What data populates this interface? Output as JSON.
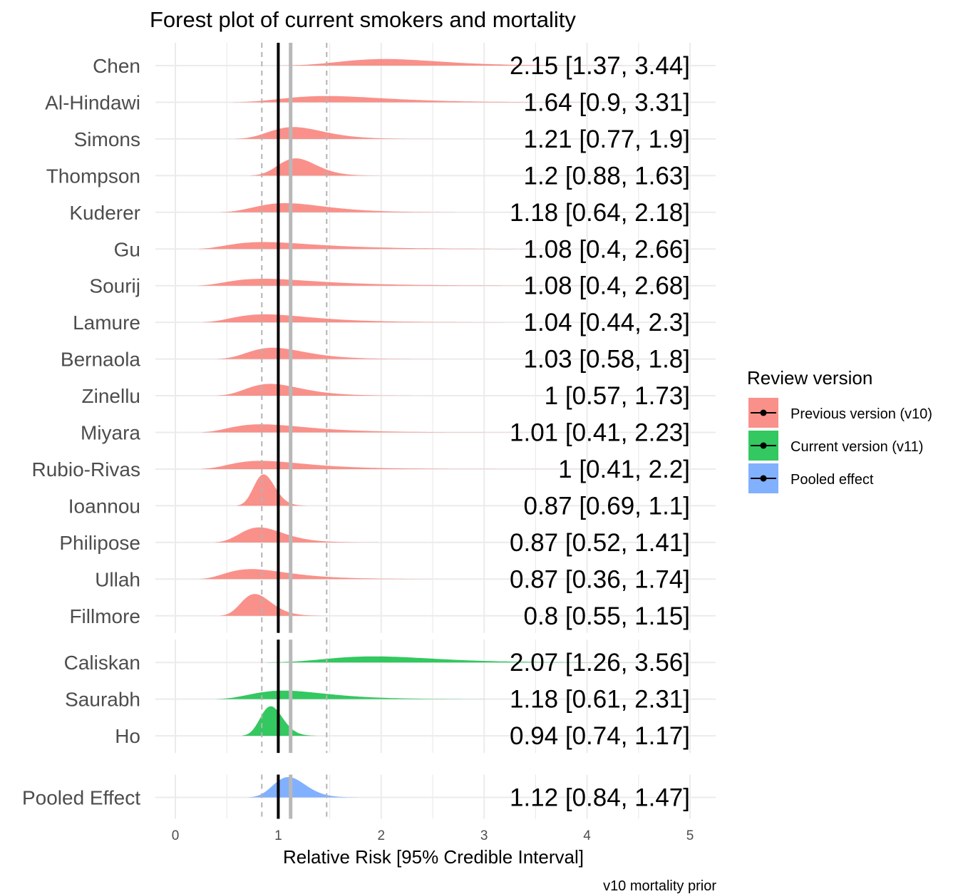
{
  "chart_data": {
    "type": "ridgeline-forest",
    "title": "Forest plot of current smokers and mortality",
    "xlabel": "Relative Risk [95% Credible Interval]",
    "caption": "v10 mortality prior",
    "xlim": [
      0,
      5
    ],
    "x_ticks": [
      "0",
      "1",
      "2",
      "3",
      "4",
      "5"
    ],
    "grid": true,
    "null_line": 1,
    "pooled_mean": 1.12,
    "pooled_ci": [
      0.84,
      1.47
    ],
    "legend": {
      "title": "Review version",
      "placement": "right",
      "items": [
        {
          "label": "Previous version (v10)",
          "color": "#F8766D"
        },
        {
          "label": "Current version (v11)",
          "color": "#00BA38"
        },
        {
          "label": "Pooled effect",
          "color": "#619CFF"
        }
      ]
    },
    "groups": [
      {
        "version": "Previous version (v10)",
        "color": "#F8766D",
        "studies": [
          {
            "study": "Chen",
            "mean": 2.15,
            "lower": 1.37,
            "upper": 3.44,
            "label": "2.15 [1.37, 3.44]"
          },
          {
            "study": "Al-Hindawi",
            "mean": 1.64,
            "lower": 0.9,
            "upper": 3.31,
            "label": "1.64 [0.9, 3.31]"
          },
          {
            "study": "Simons",
            "mean": 1.21,
            "lower": 0.77,
            "upper": 1.9,
            "label": "1.21 [0.77, 1.9]"
          },
          {
            "study": "Thompson",
            "mean": 1.2,
            "lower": 0.88,
            "upper": 1.63,
            "label": "1.2 [0.88, 1.63]"
          },
          {
            "study": "Kuderer",
            "mean": 1.18,
            "lower": 0.64,
            "upper": 2.18,
            "label": "1.18 [0.64, 2.18]"
          },
          {
            "study": "Gu",
            "mean": 1.08,
            "lower": 0.4,
            "upper": 2.66,
            "label": "1.08 [0.4, 2.66]"
          },
          {
            "study": "Sourij",
            "mean": 1.08,
            "lower": 0.4,
            "upper": 2.68,
            "label": "1.08 [0.4, 2.68]"
          },
          {
            "study": "Lamure",
            "mean": 1.04,
            "lower": 0.44,
            "upper": 2.3,
            "label": "1.04 [0.44, 2.3]"
          },
          {
            "study": "Bernaola",
            "mean": 1.03,
            "lower": 0.58,
            "upper": 1.8,
            "label": "1.03 [0.58, 1.8]"
          },
          {
            "study": "Zinellu",
            "mean": 1,
            "lower": 0.57,
            "upper": 1.73,
            "label": "1 [0.57, 1.73]"
          },
          {
            "study": "Miyara",
            "mean": 1.01,
            "lower": 0.41,
            "upper": 2.23,
            "label": "1.01 [0.41, 2.23]"
          },
          {
            "study": "Rubio-Rivas",
            "mean": 1,
            "lower": 0.41,
            "upper": 2.2,
            "label": "1 [0.41, 2.2]"
          },
          {
            "study": "Ioannou",
            "mean": 0.87,
            "lower": 0.69,
            "upper": 1.1,
            "label": "0.87 [0.69, 1.1]"
          },
          {
            "study": "Philipose",
            "mean": 0.87,
            "lower": 0.52,
            "upper": 1.41,
            "label": "0.87 [0.52, 1.41]"
          },
          {
            "study": "Ullah",
            "mean": 0.87,
            "lower": 0.36,
            "upper": 1.74,
            "label": "0.87 [0.36, 1.74]"
          },
          {
            "study": "Fillmore",
            "mean": 0.8,
            "lower": 0.55,
            "upper": 1.15,
            "label": "0.8 [0.55, 1.15]"
          }
        ]
      },
      {
        "version": "Current version (v11)",
        "color": "#00BA38",
        "studies": [
          {
            "study": "Caliskan",
            "mean": 2.07,
            "lower": 1.26,
            "upper": 3.56,
            "label": "2.07 [1.26, 3.56]"
          },
          {
            "study": "Saurabh",
            "mean": 1.18,
            "lower": 0.61,
            "upper": 2.31,
            "label": "1.18 [0.61, 2.31]"
          },
          {
            "study": "Ho",
            "mean": 0.94,
            "lower": 0.74,
            "upper": 1.17,
            "label": "0.94 [0.74, 1.17]"
          }
        ]
      },
      {
        "version": "Pooled effect",
        "color": "#619CFF",
        "studies": [
          {
            "study": "Pooled Effect",
            "mean": 1.12,
            "lower": 0.84,
            "upper": 1.47,
            "label": "1.12 [0.84, 1.47]"
          }
        ]
      }
    ]
  }
}
